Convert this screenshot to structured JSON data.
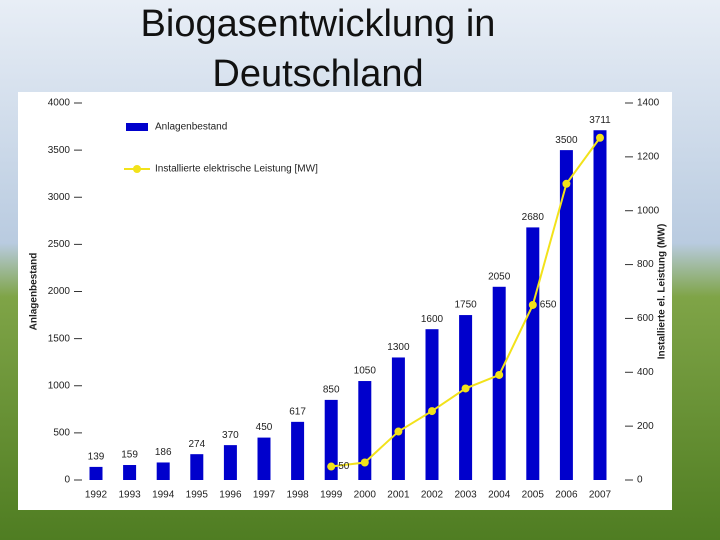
{
  "chart_data": {
    "type": "bar",
    "title": "Biogasentwicklung in Deutschland",
    "categories": [
      "1992",
      "1993",
      "1994",
      "1995",
      "1996",
      "1997",
      "1998",
      "1999",
      "2000",
      "2001",
      "2002",
      "2003",
      "2004",
      "2005",
      "2006",
      "2007"
    ],
    "series": [
      {
        "name": "Anlagenbestand",
        "color": "#0000cc",
        "type": "bar",
        "values": [
          139,
          159,
          186,
          274,
          370,
          450,
          617,
          850,
          1050,
          1300,
          1600,
          1750,
          2050,
          2680,
          3500,
          3711
        ]
      },
      {
        "name": "Installierte elektrische Leistung [MW]",
        "color": "#f2e21a",
        "type": "line",
        "axis": "y2",
        "values": [
          null,
          null,
          null,
          null,
          null,
          null,
          null,
          50,
          65,
          180,
          256,
          340,
          390,
          650,
          1100,
          1271
        ],
        "value_labels": [
          null,
          null,
          null,
          null,
          null,
          null,
          null,
          "50",
          null,
          null,
          null,
          null,
          null,
          "650",
          null,
          null
        ]
      }
    ],
    "ylabel": "Anlagenbestand",
    "y2label": "Installierte el. Leistung (MW)",
    "ylim": [
      0,
      4000
    ],
    "yticks": [
      0,
      500,
      1000,
      1500,
      2000,
      2500,
      3000,
      3500,
      4000
    ],
    "y2lim": [
      0,
      1400
    ],
    "y2ticks": [
      0,
      200,
      400,
      600,
      800,
      1000,
      1200,
      1400
    ],
    "legend": "upper left"
  }
}
